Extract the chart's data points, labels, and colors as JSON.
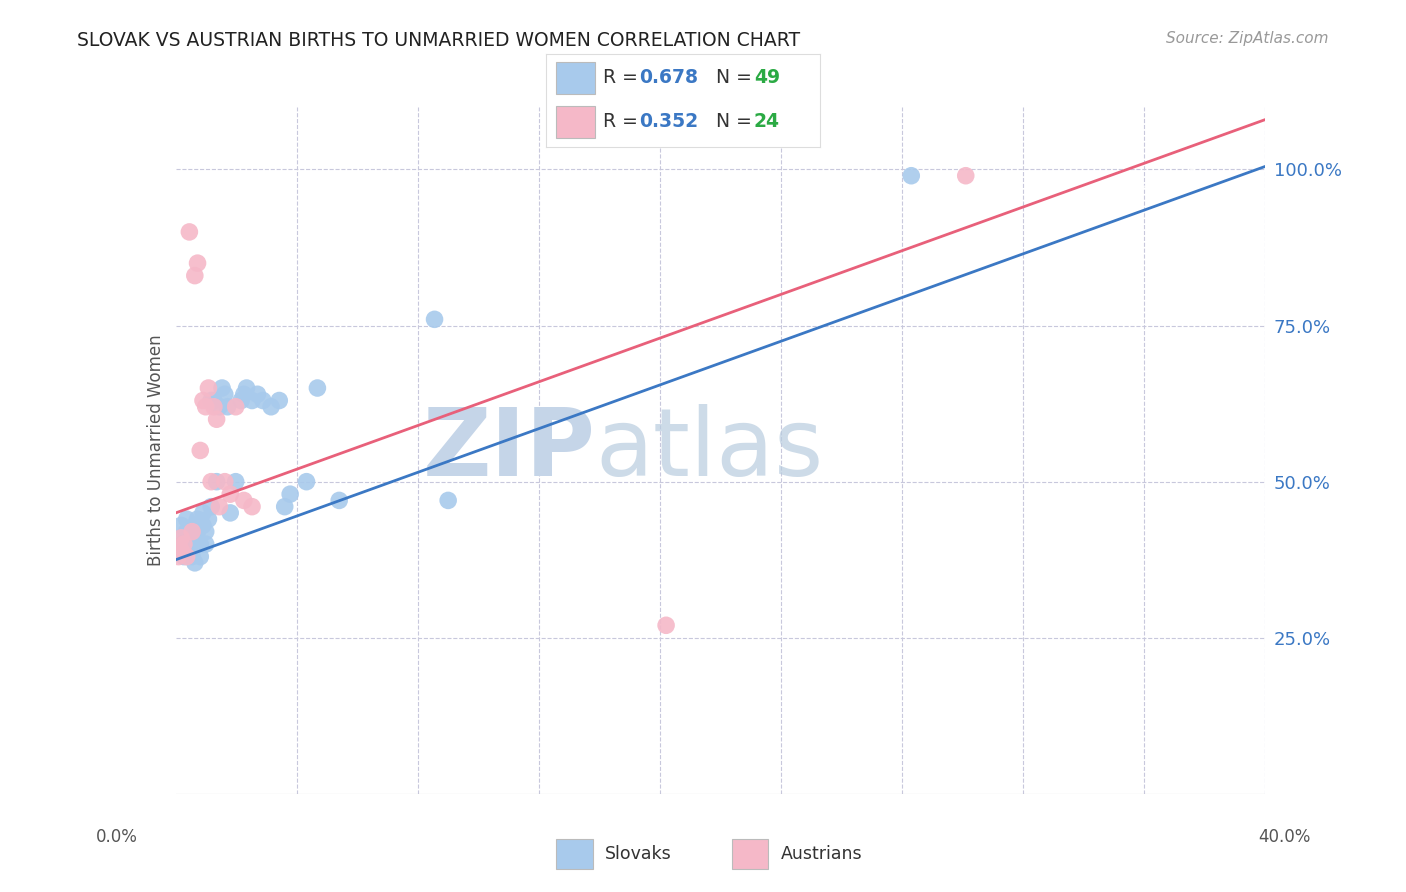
{
  "title": "SLOVAK VS AUSTRIAN BIRTHS TO UNMARRIED WOMEN CORRELATION CHART",
  "source": "Source: ZipAtlas.com",
  "ylabel": "Births to Unmarried Women",
  "ytick_vals": [
    0.25,
    0.5,
    0.75,
    1.0
  ],
  "ytick_labels": [
    "25.0%",
    "50.0%",
    "75.0%",
    "100.0%"
  ],
  "xlim": [
    0.0,
    0.4
  ],
  "ylim": [
    0.0,
    1.1
  ],
  "xtick_left": "0.0%",
  "xtick_right": "40.0%",
  "watermark_zip": "ZIP",
  "watermark_atlas": "atlas",
  "slovak_color": "#A8CAEC",
  "austrian_color": "#F5B8C8",
  "slovak_line_color": "#3B78C4",
  "austrian_line_color": "#E8607A",
  "background_color": "#FFFFFF",
  "grid_color": "#C8C8DC",
  "right_tick_color": "#3B78C4",
  "legend_r_color": "#3B78C4",
  "legend_n_color": "#2BAA44",
  "slovak_r": 0.678,
  "slovak_n": 49,
  "austrian_r": 0.352,
  "austrian_n": 24,
  "slovak_x": [
    0.001,
    0.002,
    0.002,
    0.003,
    0.003,
    0.004,
    0.004,
    0.005,
    0.005,
    0.006,
    0.006,
    0.007,
    0.007,
    0.007,
    0.008,
    0.008,
    0.009,
    0.009,
    0.01,
    0.01,
    0.011,
    0.011,
    0.012,
    0.013,
    0.013,
    0.014,
    0.015,
    0.016,
    0.017,
    0.018,
    0.019,
    0.02,
    0.022,
    0.024,
    0.025,
    0.026,
    0.028,
    0.03,
    0.032,
    0.035,
    0.038,
    0.04,
    0.042,
    0.048,
    0.052,
    0.06,
    0.095,
    0.1,
    0.27
  ],
  "slovak_y": [
    0.39,
    0.41,
    0.43,
    0.4,
    0.38,
    0.42,
    0.44,
    0.39,
    0.41,
    0.38,
    0.4,
    0.43,
    0.41,
    0.37,
    0.42,
    0.44,
    0.4,
    0.38,
    0.43,
    0.45,
    0.42,
    0.4,
    0.44,
    0.46,
    0.63,
    0.63,
    0.5,
    0.62,
    0.65,
    0.64,
    0.62,
    0.45,
    0.5,
    0.63,
    0.64,
    0.65,
    0.63,
    0.64,
    0.63,
    0.62,
    0.63,
    0.46,
    0.48,
    0.5,
    0.65,
    0.47,
    0.76,
    0.47,
    0.99
  ],
  "austrian_x": [
    0.001,
    0.002,
    0.002,
    0.003,
    0.004,
    0.005,
    0.006,
    0.007,
    0.008,
    0.009,
    0.01,
    0.011,
    0.012,
    0.013,
    0.014,
    0.015,
    0.016,
    0.018,
    0.02,
    0.022,
    0.025,
    0.028,
    0.18,
    0.29
  ],
  "austrian_y": [
    0.38,
    0.39,
    0.41,
    0.4,
    0.38,
    0.9,
    0.42,
    0.83,
    0.85,
    0.55,
    0.63,
    0.62,
    0.65,
    0.5,
    0.62,
    0.6,
    0.46,
    0.5,
    0.48,
    0.62,
    0.47,
    0.46,
    0.27,
    0.99
  ],
  "slovak_line_x0": 0.0,
  "slovak_line_y0": 0.375,
  "slovak_line_x1": 0.4,
  "slovak_line_y1": 1.005,
  "austrian_line_x0": 0.0,
  "austrian_line_y0": 0.45,
  "austrian_line_x1": 0.4,
  "austrian_line_y1": 1.08
}
